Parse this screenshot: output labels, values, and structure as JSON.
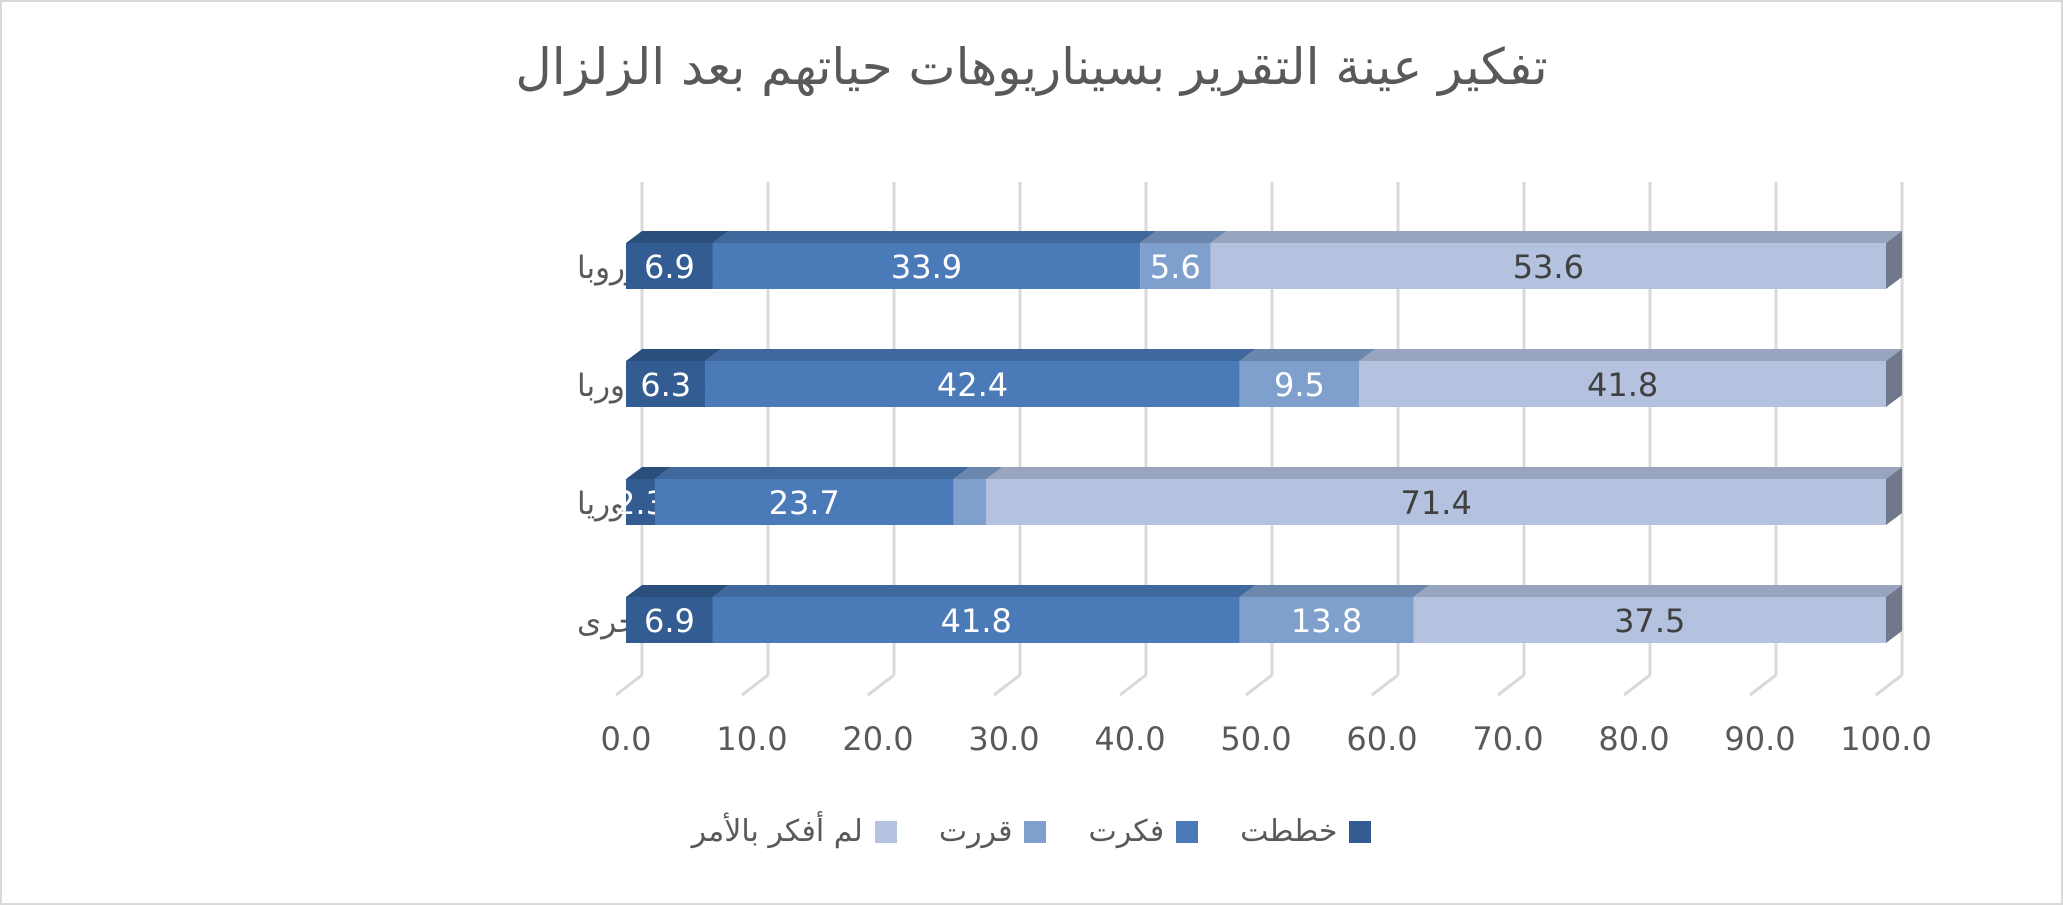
{
  "chart_data": {
    "type": "bar",
    "orientation": "horizontal",
    "stacked": true,
    "three_d": true,
    "title": "تفكير عينة التقرير بسيناريوهات حياتهم بعد الزلزال",
    "categories": [
      "الهجرة إلى أي بلد آخر باستثناء أوروبا",
      "الهجرة إلى أوربا",
      "العودة إلى سوريا",
      "الانتقال إلى مدينة تركية أخرى"
    ],
    "series": [
      {
        "name": "خططت",
        "color": "#335d92",
        "values": [
          6.9,
          6.3,
          2.3,
          6.9
        ],
        "labels": [
          "6.9",
          "6.3",
          "2.3",
          "6.9"
        ]
      },
      {
        "name": "فكرت",
        "color": "#4a7ab8",
        "values": [
          33.9,
          42.4,
          23.7,
          41.8
        ],
        "labels": [
          "33.9",
          "42.4",
          "23.7",
          "41.8"
        ]
      },
      {
        "name": "قررت",
        "color": "#7f9fcd",
        "values": [
          5.6,
          9.5,
          2.6,
          13.8
        ],
        "labels": [
          "5.6",
          "9.5",
          "",
          "13.8"
        ]
      },
      {
        "name": "لم أفكر بالأمر",
        "color": "#b4c2e0",
        "values": [
          53.6,
          41.8,
          71.4,
          37.5
        ],
        "labels": [
          "53.6",
          "41.8",
          "71.4",
          "37.5"
        ]
      }
    ],
    "xlim": [
      0,
      100
    ],
    "xticks": [
      "0.0",
      "10.0",
      "20.0",
      "30.0",
      "40.0",
      "50.0",
      "60.0",
      "70.0",
      "80.0",
      "90.0",
      "100.0"
    ],
    "grid": true,
    "legend_position": "bottom"
  }
}
